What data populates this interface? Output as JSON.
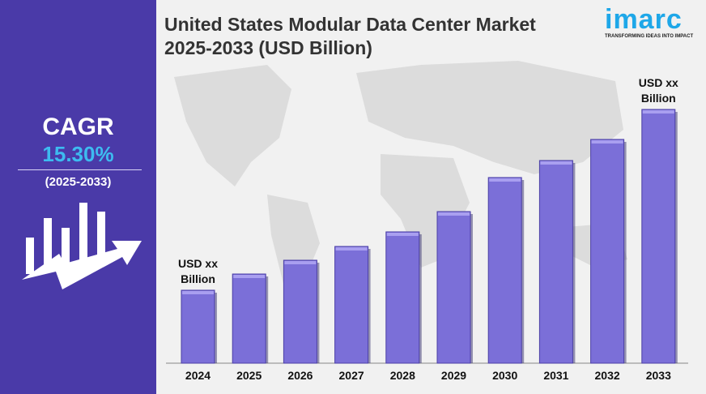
{
  "title_line1": "United States Modular Data Center Market",
  "title_line2": "2025-2033 (USD Billion)",
  "logo": {
    "text": "imarc",
    "tagline": "TRANSFORMING IDEAS INTO IMPACT",
    "color": "#1ea7e8"
  },
  "sidebar": {
    "label": "CAGR",
    "value": "15.30%",
    "period": "(2025-2033)",
    "bg": "#4a3aa8",
    "value_color": "#3dbbf0",
    "icon": "growth-chart-arrow-icon"
  },
  "chart_data": {
    "type": "bar",
    "categories": [
      "2024",
      "2025",
      "2026",
      "2027",
      "2028",
      "2029",
      "2030",
      "2031",
      "2032",
      "2033"
    ],
    "values": [
      90,
      110,
      127,
      144,
      162,
      187,
      229,
      250,
      276,
      313
    ],
    "value_note_labels": {
      "first": [
        "USD xx",
        "Billion"
      ],
      "last": [
        "USD xx",
        "Billion"
      ]
    },
    "bar_color": "#7b6fd8",
    "grid": false
  }
}
